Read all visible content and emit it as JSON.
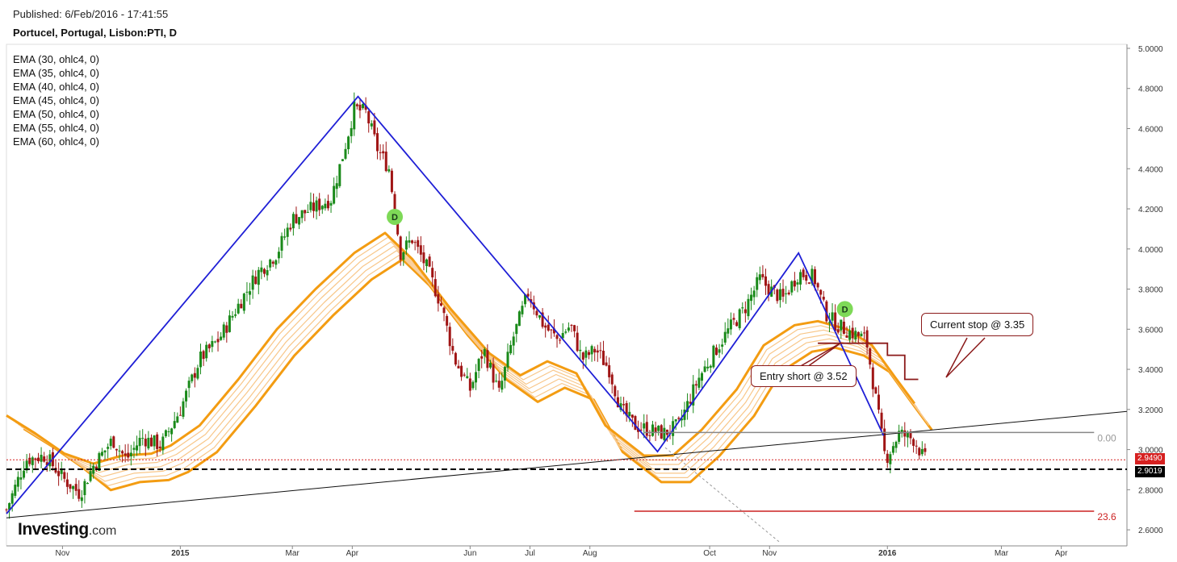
{
  "header": {
    "published": "Published: 6/Feb/2016 - 17:41:55",
    "title": "Portucel, Portugal, Lisbon:PTI, D"
  },
  "brand": {
    "name": "Investing",
    "domain": ".com"
  },
  "legend": [
    "EMA (30, ohlc4, 0)",
    "EMA (35, ohlc4, 0)",
    "EMA (40, ohlc4, 0)",
    "EMA (45, ohlc4, 0)",
    "EMA (50, ohlc4, 0)",
    "EMA (55, ohlc4, 0)",
    "EMA (60, ohlc4, 0)"
  ],
  "annotations": {
    "entry_short": "Entry short @ 3.52",
    "current_stop": "Current stop  @ 3.35",
    "fib_0": "0.00",
    "fib_236": "23.6",
    "marker_d": "D",
    "price_current": "2.9490",
    "price_level": "2.9019"
  },
  "colors": {
    "up": "#1a8a1a",
    "down": "#a01515",
    "ema": "#f39c12",
    "ema_light": "#f8c78a",
    "wave": "#1f1fd6",
    "stop_line": "#8b1a1a",
    "current": "#d62020",
    "marker": "#7ed957",
    "axis": "#888888"
  },
  "chart_data": {
    "type": "candlestick",
    "ylim": [
      2.52,
      5.02
    ],
    "yticks": [
      "5.0000",
      "4.8000",
      "4.6000",
      "4.4000",
      "4.2000",
      "4.0000",
      "3.8000",
      "3.6000",
      "3.4000",
      "3.2000",
      "3.0000",
      "2.8000",
      "2.6000"
    ],
    "ytick_values": [
      5.0,
      4.8,
      4.6,
      4.4,
      4.2,
      4.0,
      3.8,
      3.6,
      3.4,
      3.2,
      3.0,
      2.8,
      2.6
    ],
    "xticks": [
      "Nov",
      "2015",
      "Mar",
      "Apr",
      "Jun",
      "Jul",
      "Aug",
      "Oct",
      "Nov",
      "2016",
      "Mar",
      "Apr"
    ],
    "xtick_days": [
      29,
      90,
      148,
      179,
      240,
      271,
      302,
      364,
      395,
      456,
      515,
      546
    ],
    "day_range": [
      0,
      580
    ],
    "close_path": [
      [
        0,
        2.7
      ],
      [
        10,
        2.95
      ],
      [
        20,
        2.97
      ],
      [
        30,
        2.85
      ],
      [
        38,
        2.78
      ],
      [
        45,
        2.92
      ],
      [
        55,
        3.05
      ],
      [
        62,
        2.95
      ],
      [
        70,
        3.06
      ],
      [
        80,
        3.02
      ],
      [
        90,
        3.2
      ],
      [
        100,
        3.45
      ],
      [
        110,
        3.55
      ],
      [
        120,
        3.72
      ],
      [
        130,
        3.88
      ],
      [
        140,
        3.98
      ],
      [
        148,
        4.15
      ],
      [
        158,
        4.2
      ],
      [
        168,
        4.25
      ],
      [
        175,
        4.5
      ],
      [
        180,
        4.7
      ],
      [
        186,
        4.68
      ],
      [
        192,
        4.5
      ],
      [
        198,
        4.4
      ],
      [
        204,
        3.98
      ],
      [
        210,
        4.05
      ],
      [
        218,
        3.9
      ],
      [
        225,
        3.72
      ],
      [
        232,
        3.45
      ],
      [
        240,
        3.3
      ],
      [
        247,
        3.5
      ],
      [
        255,
        3.28
      ],
      [
        262,
        3.55
      ],
      [
        270,
        3.78
      ],
      [
        278,
        3.62
      ],
      [
        285,
        3.55
      ],
      [
        292,
        3.62
      ],
      [
        298,
        3.45
      ],
      [
        305,
        3.5
      ],
      [
        312,
        3.4
      ],
      [
        318,
        3.2
      ],
      [
        325,
        3.12
      ],
      [
        332,
        3.1
      ],
      [
        340,
        3.08
      ],
      [
        348,
        3.12
      ],
      [
        358,
        3.35
      ],
      [
        366,
        3.48
      ],
      [
        374,
        3.6
      ],
      [
        382,
        3.7
      ],
      [
        390,
        3.85
      ],
      [
        395,
        3.8
      ],
      [
        402,
        3.75
      ],
      [
        410,
        3.88
      ],
      [
        418,
        3.86
      ],
      [
        424,
        3.68
      ],
      [
        430,
        3.62
      ],
      [
        438,
        3.58
      ],
      [
        445,
        3.55
      ],
      [
        450,
        3.25
      ],
      [
        455,
        2.95
      ],
      [
        462,
        3.08
      ],
      [
        470,
        3.05
      ],
      [
        475,
        2.95
      ]
    ],
    "ema_path": [
      [
        0,
        3.17
      ],
      [
        15,
        3.08
      ],
      [
        30,
        2.98
      ],
      [
        45,
        2.93
      ],
      [
        60,
        2.97
      ],
      [
        75,
        2.98
      ],
      [
        85,
        3.02
      ],
      [
        100,
        3.12
      ],
      [
        120,
        3.35
      ],
      [
        140,
        3.6
      ],
      [
        160,
        3.8
      ],
      [
        180,
        3.98
      ],
      [
        196,
        4.08
      ],
      [
        210,
        3.95
      ],
      [
        230,
        3.7
      ],
      [
        250,
        3.48
      ],
      [
        266,
        3.37
      ],
      [
        280,
        3.44
      ],
      [
        295,
        3.38
      ],
      [
        310,
        3.12
      ],
      [
        330,
        2.97
      ],
      [
        345,
        2.97
      ],
      [
        360,
        3.1
      ],
      [
        378,
        3.3
      ],
      [
        392,
        3.52
      ],
      [
        408,
        3.62
      ],
      [
        420,
        3.64
      ],
      [
        435,
        3.6
      ],
      [
        448,
        3.52
      ],
      [
        460,
        3.36
      ],
      [
        470,
        3.23
      ]
    ],
    "ema_offsets": [
      0.0,
      0.04,
      0.08,
      0.12,
      0.16,
      0.2,
      0.24
    ],
    "ema_shift_days": [
      0,
      1.5,
      3,
      4.5,
      6,
      7.5,
      9
    ],
    "wave": [
      [
        0,
        2.68
      ],
      [
        182,
        4.76
      ],
      [
        337,
        2.99
      ],
      [
        410,
        3.98
      ],
      [
        454,
        3.07
      ]
    ],
    "wave_gap": [
      [
        188,
        4.69
      ],
      [
        196,
        4.56
      ]
    ],
    "trendline": [
      [
        0,
        2.66
      ],
      [
        580,
        3.19
      ]
    ],
    "fib_0_line": {
      "start": 330,
      "end": 563,
      "value": 3.085
    },
    "fib_236_line": {
      "start": 325,
      "end": 563,
      "value": 2.693
    },
    "dashed_diagonal": [
      [
        341,
        3.01
      ],
      [
        400,
        2.54
      ]
    ],
    "stop_steps": [
      [
        420,
        3.53
      ],
      [
        456,
        3.53
      ],
      [
        456,
        3.47
      ],
      [
        465,
        3.47
      ],
      [
        465,
        3.35
      ],
      [
        472,
        3.35
      ]
    ],
    "d_markers": [
      [
        201,
        4.16
      ],
      [
        434,
        3.7
      ]
    ],
    "current_price": 2.949,
    "support_level": 2.9019
  }
}
